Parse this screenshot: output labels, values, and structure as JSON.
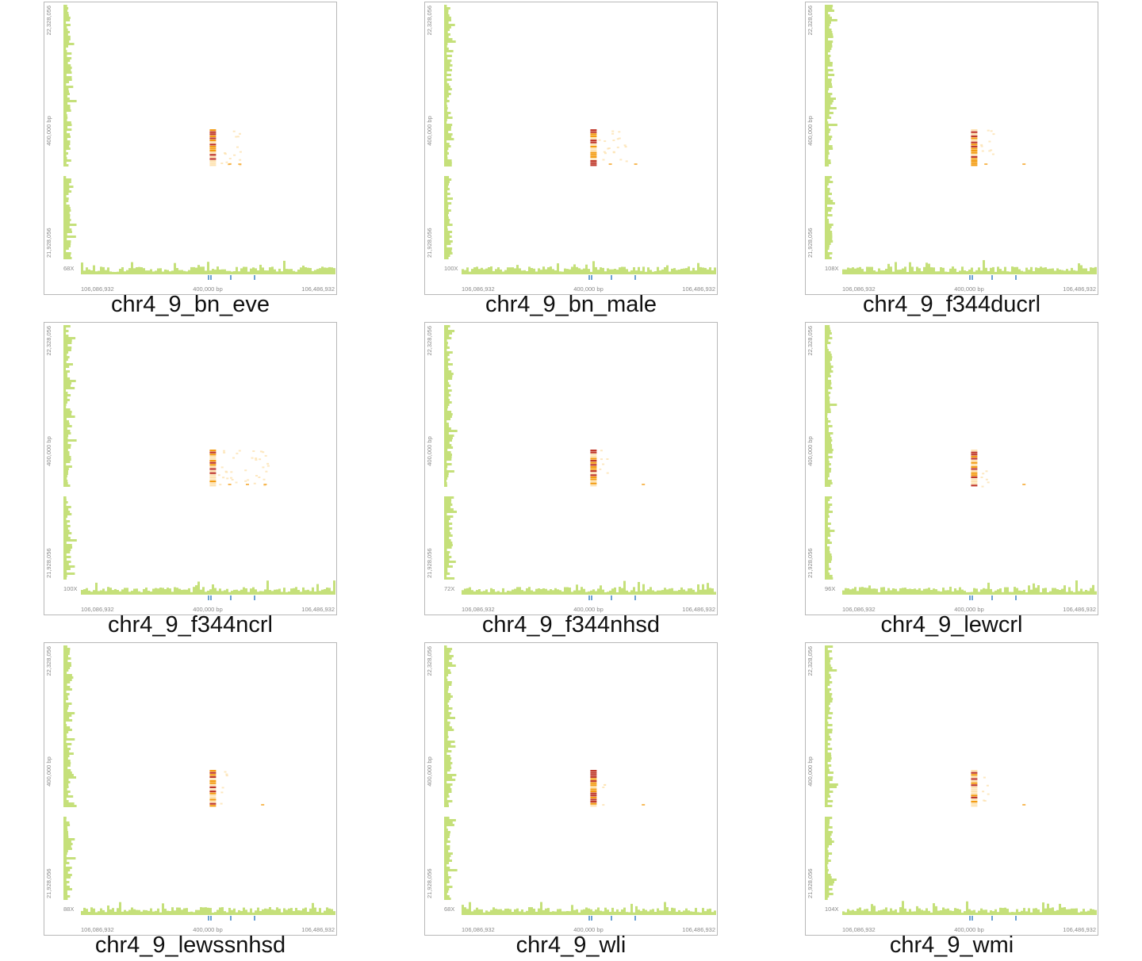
{
  "chart_data": [
    {
      "type": "heatmap",
      "title": "chr4_9_bn_eve",
      "coverage_label": "68X",
      "y_axis": {
        "top": "22,328,056",
        "middle": "400,000 bp",
        "bottom": "21,928,056"
      },
      "x_axis": {
        "left": "106,086,932",
        "middle": "400,000 bp",
        "right": "106,486,932"
      },
      "hotspot_columns": [
        0.52
      ],
      "extra_spots": [
        [
          0.58,
          0.5
        ],
        [
          0.62,
          0.55
        ]
      ],
      "spread": 0.4
    },
    {
      "type": "heatmap",
      "title": "chr4_9_bn_male",
      "coverage_label": "100X",
      "y_axis": {
        "top": "22,328,056",
        "middle": "400,000 bp",
        "bottom": "21,928,056"
      },
      "x_axis": {
        "left": "106,086,932",
        "middle": "400,000 bp",
        "right": "106,486,932"
      },
      "hotspot_columns": [
        0.52
      ],
      "extra_spots": [
        [
          0.58,
          0.5
        ],
        [
          0.68,
          0.62
        ]
      ],
      "spread": 0.5
    },
    {
      "type": "heatmap",
      "title": "chr4_9_f344ducrl",
      "coverage_label": "108X",
      "y_axis": {
        "top": "22,328,056",
        "middle": "400,000 bp",
        "bottom": "21,928,056"
      },
      "x_axis": {
        "left": "106,086,932",
        "middle": "400,000 bp",
        "right": "106,486,932"
      },
      "hotspot_columns": [
        0.52
      ],
      "extra_spots": [
        [
          0.56,
          0.5
        ],
        [
          0.71,
          0.62
        ]
      ],
      "spread": 0.25
    },
    {
      "type": "heatmap",
      "title": "chr4_9_f344ncrl",
      "coverage_label": "100X",
      "y_axis": {
        "top": "22,328,056",
        "middle": "400,000 bp",
        "bottom": "21,928,056"
      },
      "x_axis": {
        "left": "106,086,932",
        "middle": "400,000 bp",
        "right": "106,486,932"
      },
      "hotspot_columns": [
        0.52
      ],
      "extra_spots": [
        [
          0.58,
          0.5
        ],
        [
          0.65,
          0.55
        ],
        [
          0.72,
          0.6
        ]
      ],
      "spread": 0.9
    },
    {
      "type": "heatmap",
      "title": "chr4_9_f344nhsd",
      "coverage_label": "72X",
      "y_axis": {
        "top": "22,328,056",
        "middle": "400,000 bp",
        "bottom": "21,928,056"
      },
      "x_axis": {
        "left": "106,086,932",
        "middle": "400,000 bp",
        "right": "106,486,932"
      },
      "hotspot_columns": [
        0.52
      ],
      "extra_spots": [
        [
          0.71,
          0.62
        ]
      ],
      "spread": 0.15
    },
    {
      "type": "heatmap",
      "title": "chr4_9_lewcrl",
      "coverage_label": "96X",
      "y_axis": {
        "top": "22,328,056",
        "middle": "400,000 bp",
        "bottom": "21,928,056"
      },
      "x_axis": {
        "left": "106,086,932",
        "middle": "400,000 bp",
        "right": "106,486,932"
      },
      "hotspot_columns": [
        0.52
      ],
      "extra_spots": [
        [
          0.71,
          0.62
        ]
      ],
      "spread": 0.15
    },
    {
      "type": "heatmap",
      "title": "chr4_9_lewssnhsd",
      "coverage_label": "88X",
      "y_axis": {
        "top": "22,328,056",
        "middle": "400,000 bp",
        "bottom": "21,928,056"
      },
      "x_axis": {
        "left": "106,086,932",
        "middle": "400,000 bp",
        "right": "106,486,932"
      },
      "hotspot_columns": [
        0.52
      ],
      "extra_spots": [
        [
          0.71,
          0.62
        ]
      ],
      "spread": 0.15
    },
    {
      "type": "heatmap",
      "title": "chr4_9_wli",
      "coverage_label": "68X",
      "y_axis": {
        "top": "22,328,056",
        "middle": "400,000 bp",
        "bottom": "21,928,056"
      },
      "x_axis": {
        "left": "106,086,932",
        "middle": "400,000 bp",
        "right": "106,486,932"
      },
      "hotspot_columns": [
        0.52
      ],
      "extra_spots": [
        [
          0.71,
          0.62
        ]
      ],
      "spread": 0.1
    },
    {
      "type": "heatmap",
      "title": "chr4_9_wmi",
      "coverage_label": "104X",
      "y_axis": {
        "top": "22,328,056",
        "middle": "400,000 bp",
        "bottom": "21,928,056"
      },
      "x_axis": {
        "left": "106,086,932",
        "middle": "400,000 bp",
        "right": "106,486,932"
      },
      "hotspot_columns": [
        0.52
      ],
      "extra_spots": [
        [
          0.71,
          0.62
        ]
      ],
      "spread": 0.15
    }
  ],
  "colors": {
    "coverage": "#c5e07a",
    "frame": "#b8b8b8",
    "gene_tick": "#3b82c4",
    "heat_high": "#c0392b",
    "heat_mid": "#f39c12",
    "heat_low": "#fde2b0",
    "axis_text": "#8a8a8a"
  }
}
